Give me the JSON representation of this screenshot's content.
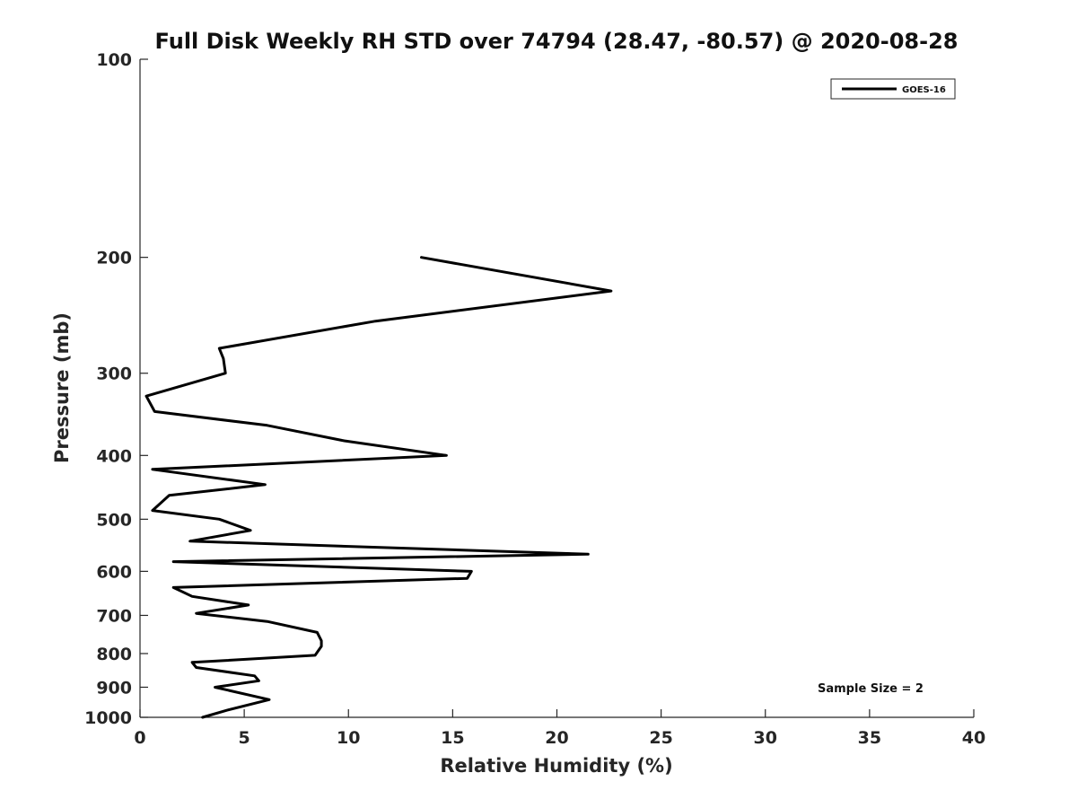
{
  "chart_data": {
    "type": "line",
    "title": "Full Disk Weekly RH STD over 74794 (28.47, -80.57) @ 2020-08-28",
    "xlabel": "Relative Humidity (%)",
    "ylabel": "Pressure (mb)",
    "xlim": [
      0,
      40
    ],
    "ylim": [
      100,
      1000
    ],
    "yscale": "log",
    "y_reversed": true,
    "xticks": [
      0,
      5,
      10,
      15,
      20,
      25,
      30,
      35,
      40
    ],
    "yticks": [
      100,
      200,
      300,
      400,
      500,
      600,
      700,
      800,
      900,
      1000
    ],
    "xtick_labels": [
      "0",
      "5",
      "10",
      "15",
      "20",
      "25",
      "30",
      "35",
      "40"
    ],
    "ytick_labels": [
      "100",
      "200",
      "300",
      "400",
      "500",
      "600",
      "700",
      "800",
      "900",
      "1000"
    ],
    "grid": false,
    "legend": {
      "position": "top-right",
      "entries": [
        "GOES-16"
      ]
    },
    "annotation": "Sample Size = 2",
    "series": [
      {
        "name": "GOES-16",
        "color": "#000000",
        "points": [
          {
            "x": 13.5,
            "p": 200
          },
          {
            "x": 22.6,
            "p": 225
          },
          {
            "x": 11.3,
            "p": 250
          },
          {
            "x": 3.8,
            "p": 275
          },
          {
            "x": 4.0,
            "p": 285
          },
          {
            "x": 4.1,
            "p": 300
          },
          {
            "x": 0.3,
            "p": 325
          },
          {
            "x": 0.7,
            "p": 343
          },
          {
            "x": 6.1,
            "p": 360
          },
          {
            "x": 9.8,
            "p": 380
          },
          {
            "x": 14.7,
            "p": 400
          },
          {
            "x": 0.6,
            "p": 420
          },
          {
            "x": 6.0,
            "p": 443
          },
          {
            "x": 1.4,
            "p": 460
          },
          {
            "x": 0.6,
            "p": 485
          },
          {
            "x": 3.8,
            "p": 500
          },
          {
            "x": 5.3,
            "p": 520
          },
          {
            "x": 2.4,
            "p": 540
          },
          {
            "x": 21.5,
            "p": 565
          },
          {
            "x": 1.6,
            "p": 580
          },
          {
            "x": 15.9,
            "p": 600
          },
          {
            "x": 15.7,
            "p": 615
          },
          {
            "x": 1.6,
            "p": 635
          },
          {
            "x": 2.5,
            "p": 655
          },
          {
            "x": 5.2,
            "p": 675
          },
          {
            "x": 2.7,
            "p": 695
          },
          {
            "x": 6.1,
            "p": 715
          },
          {
            "x": 8.5,
            "p": 743
          },
          {
            "x": 8.7,
            "p": 765
          },
          {
            "x": 8.7,
            "p": 780
          },
          {
            "x": 8.4,
            "p": 805
          },
          {
            "x": 2.5,
            "p": 825
          },
          {
            "x": 2.7,
            "p": 840
          },
          {
            "x": 5.5,
            "p": 865
          },
          {
            "x": 5.7,
            "p": 880
          },
          {
            "x": 3.6,
            "p": 900
          },
          {
            "x": 6.2,
            "p": 940
          },
          {
            "x": 4.2,
            "p": 975
          },
          {
            "x": 3.0,
            "p": 1000
          }
        ]
      }
    ]
  }
}
